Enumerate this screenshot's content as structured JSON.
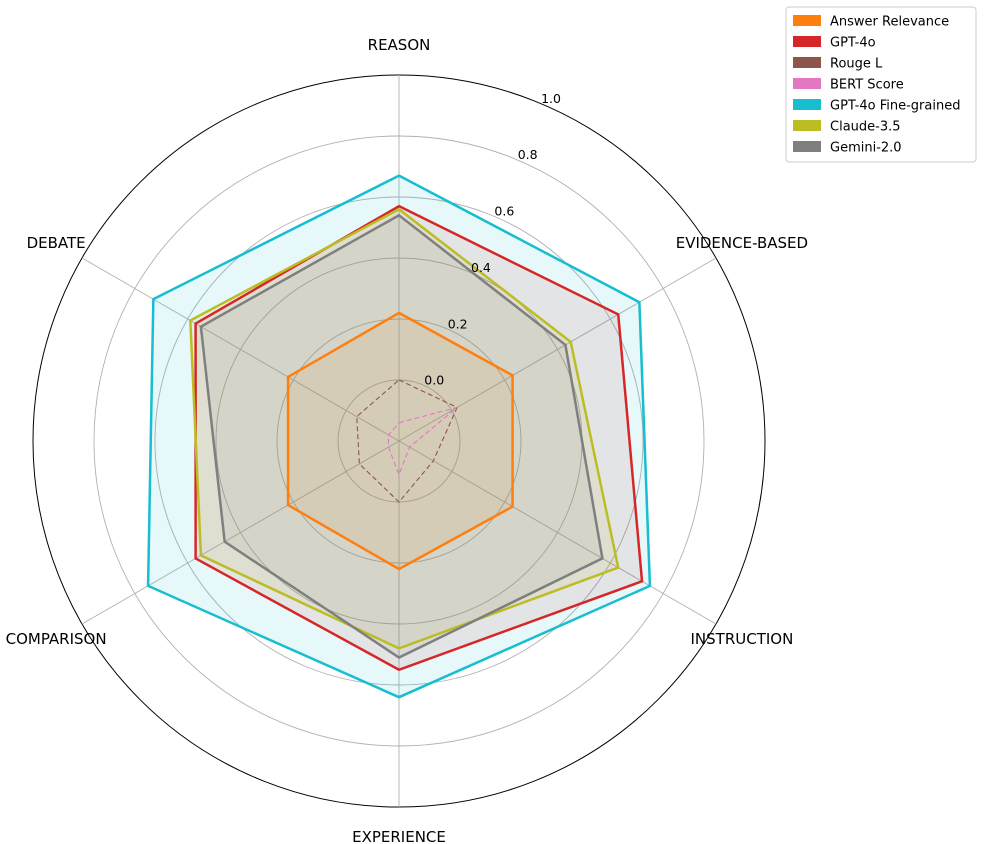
{
  "chart_data": {
    "type": "radar",
    "axes": [
      "REASON",
      "EVIDENCE-BASED",
      "INSTRUCTION",
      "EXPERIENCE",
      "COMPARISON",
      "DEBATE"
    ],
    "rlim": [
      -0.2,
      1.0
    ],
    "ticks": [
      0.0,
      0.2,
      0.4,
      0.6,
      0.8,
      1.0
    ],
    "tick_labels": [
      "0.0",
      "0.2",
      "0.4",
      "0.6",
      "0.8",
      "1.0"
    ],
    "grid": true,
    "legend_position": "top-right",
    "series": [
      {
        "name": "Answer Relevance",
        "color": "#ff7f0e",
        "style": "solid",
        "fill": true,
        "values": [
          0.22,
          0.23,
          0.23,
          0.22,
          0.22,
          0.22
        ]
      },
      {
        "name": "GPT-4o",
        "color": "#d62728",
        "style": "solid",
        "fill": true,
        "values": [
          0.57,
          0.63,
          0.72,
          0.55,
          0.57,
          0.57
        ]
      },
      {
        "name": "Rouge L",
        "color": "#8c564b",
        "style": "dashed",
        "fill": false,
        "values": [
          0.0,
          0.02,
          -0.07,
          -0.0,
          -0.05,
          -0.04
        ]
      },
      {
        "name": "BERT Score",
        "color": "#e377c2",
        "style": "dashed",
        "fill": false,
        "values": [
          -0.14,
          0.02,
          -0.16,
          -0.09,
          -0.16,
          -0.16
        ]
      },
      {
        "name": "GPT-4o Fine-grained",
        "color": "#17becf",
        "style": "solid",
        "fill": true,
        "values": [
          0.67,
          0.71,
          0.75,
          0.64,
          0.75,
          0.73
        ]
      },
      {
        "name": "Claude-3.5",
        "color": "#bcbd22",
        "style": "solid",
        "fill": true,
        "values": [
          0.56,
          0.45,
          0.63,
          0.48,
          0.55,
          0.59
        ]
      },
      {
        "name": "Gemini-2.0",
        "color": "#7f7f7f",
        "style": "solid",
        "fill": true,
        "values": [
          0.54,
          0.43,
          0.57,
          0.51,
          0.46,
          0.55
        ]
      }
    ]
  }
}
